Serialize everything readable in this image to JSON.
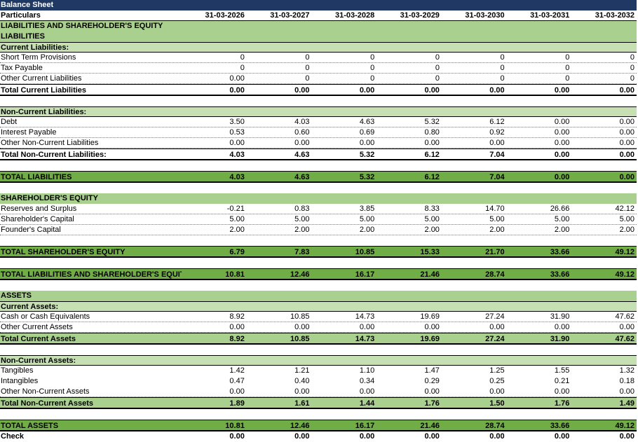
{
  "sheet": {
    "title": "Balance Sheet",
    "header_label": "Particulars",
    "years": [
      "31-03-2026",
      "31-03-2027",
      "31-03-2028",
      "31-03-2029",
      "31-03-2030",
      "31-03-2031",
      "31-03-2032"
    ]
  },
  "rows": [
    {
      "kind": "sec",
      "label": "LIABILITIES AND SHAREHOLDER'S EQUITY"
    },
    {
      "kind": "sec",
      "label": "LIABILITIES"
    },
    {
      "kind": "sec2",
      "label": "Current Liabilities:"
    },
    {
      "kind": "item",
      "label": "Short Term Provisions",
      "values": [
        "0",
        "0",
        "0",
        "0",
        "0",
        "0",
        "0"
      ]
    },
    {
      "kind": "item",
      "label": "Tax Payable",
      "values": [
        "0",
        "0",
        "0",
        "0",
        "0",
        "0",
        "0"
      ]
    },
    {
      "kind": "item",
      "label": "Other Current Liabilities",
      "values": [
        "0.00",
        "0",
        "0",
        "0",
        "0",
        "0",
        "0"
      ]
    },
    {
      "kind": "total",
      "label": "Total Current Liabilities",
      "values": [
        "0.00",
        "0.00",
        "0.00",
        "0.00",
        "0.00",
        "0.00",
        "0.00"
      ]
    },
    {
      "kind": "blank"
    },
    {
      "kind": "sec2",
      "label": "Non-Current Liabilities:"
    },
    {
      "kind": "item",
      "label": "Debt",
      "values": [
        "3.50",
        "4.03",
        "4.63",
        "5.32",
        "6.12",
        "0.00",
        "0.00"
      ]
    },
    {
      "kind": "item",
      "label": "Interest Payable",
      "values": [
        "0.53",
        "0.60",
        "0.69",
        "0.80",
        "0.92",
        "0.00",
        "0.00"
      ]
    },
    {
      "kind": "item",
      "label": "Other Non-Current Liabilities",
      "values": [
        "0.00",
        "0.00",
        "0.00",
        "0.00",
        "0.00",
        "0.00",
        "0.00"
      ]
    },
    {
      "kind": "total",
      "label": "Total Non-Current Liabilities:",
      "values": [
        "4.03",
        "4.63",
        "5.32",
        "6.12",
        "7.04",
        "0.00",
        "0.00"
      ]
    },
    {
      "kind": "blank"
    },
    {
      "kind": "grand",
      "label": "TOTAL LIABILITIES",
      "values": [
        "4.03",
        "4.63",
        "5.32",
        "6.12",
        "7.04",
        "0.00",
        "0.00"
      ]
    },
    {
      "kind": "blank"
    },
    {
      "kind": "sec",
      "label": "SHAREHOLDER'S EQUITY"
    },
    {
      "kind": "item",
      "label": "Reserves and Surplus",
      "values": [
        "-0.21",
        "0.83",
        "3.85",
        "8.33",
        "14.70",
        "26.66",
        "42.12"
      ]
    },
    {
      "kind": "item",
      "label": "Shareholder's Capital",
      "values": [
        "5.00",
        "5.00",
        "5.00",
        "5.00",
        "5.00",
        "5.00",
        "5.00"
      ]
    },
    {
      "kind": "item",
      "label": "Founder's Capital",
      "values": [
        "2.00",
        "2.00",
        "2.00",
        "2.00",
        "2.00",
        "2.00",
        "2.00"
      ]
    },
    {
      "kind": "blank"
    },
    {
      "kind": "grand",
      "label": "TOTAL SHAREHOLDER'S EQUITY",
      "values": [
        "6.79",
        "7.83",
        "10.85",
        "15.33",
        "21.70",
        "33.66",
        "49.12"
      ]
    },
    {
      "kind": "blank"
    },
    {
      "kind": "grand",
      "label": "TOTAL LIABILITIES AND SHAREHOLDER'S EQUITY",
      "values": [
        "10.81",
        "12.46",
        "16.17",
        "21.46",
        "28.74",
        "33.66",
        "49.12"
      ]
    },
    {
      "kind": "blank"
    },
    {
      "kind": "sec",
      "label": "ASSETS"
    },
    {
      "kind": "sec2",
      "label": "Current Assets:"
    },
    {
      "kind": "item",
      "label": "Cash or Cash Equivalents",
      "values": [
        "8.92",
        "10.85",
        "14.73",
        "19.69",
        "27.24",
        "31.90",
        "47.62"
      ]
    },
    {
      "kind": "item",
      "label": "Other Current Assets",
      "values": [
        "0.00",
        "0.00",
        "0.00",
        "0.00",
        "0.00",
        "0.00",
        "0.00"
      ]
    },
    {
      "kind": "totalg",
      "label": "Total Current Assets",
      "values": [
        "8.92",
        "10.85",
        "14.73",
        "19.69",
        "27.24",
        "31.90",
        "47.62"
      ]
    },
    {
      "kind": "blank"
    },
    {
      "kind": "sec2",
      "label": "Non-Current Assets:"
    },
    {
      "kind": "plain",
      "label": "Tangibles",
      "values": [
        "1.42",
        "1.21",
        "1.10",
        "1.47",
        "1.25",
        "1.55",
        "1.32"
      ]
    },
    {
      "kind": "plain",
      "label": "Intangibles",
      "values": [
        "0.47",
        "0.40",
        "0.34",
        "0.29",
        "0.25",
        "0.21",
        "0.18"
      ]
    },
    {
      "kind": "item",
      "label": "Other Non-Current Assets",
      "values": [
        "0.00",
        "0.00",
        "0.00",
        "0.00",
        "0.00",
        "0.00",
        "0.00"
      ]
    },
    {
      "kind": "totalg",
      "label": "Total Non-Current Assets",
      "values": [
        "1.89",
        "1.61",
        "1.44",
        "1.76",
        "1.50",
        "1.76",
        "1.49"
      ]
    },
    {
      "kind": "blank"
    },
    {
      "kind": "grand",
      "label": "TOTAL ASSETS",
      "values": [
        "10.81",
        "12.46",
        "16.17",
        "21.46",
        "28.74",
        "33.66",
        "49.12"
      ]
    },
    {
      "kind": "check",
      "label": "Check",
      "values": [
        "0.00",
        "0.00",
        "0.00",
        "0.00",
        "0.00",
        "0.00",
        "0.00"
      ]
    }
  ],
  "colors": {
    "title_bg": "#1f3864",
    "section_bg": "#a9d08e",
    "subsection_bg": "#c6e0b4",
    "grand_total_bg": "#70ad47"
  }
}
